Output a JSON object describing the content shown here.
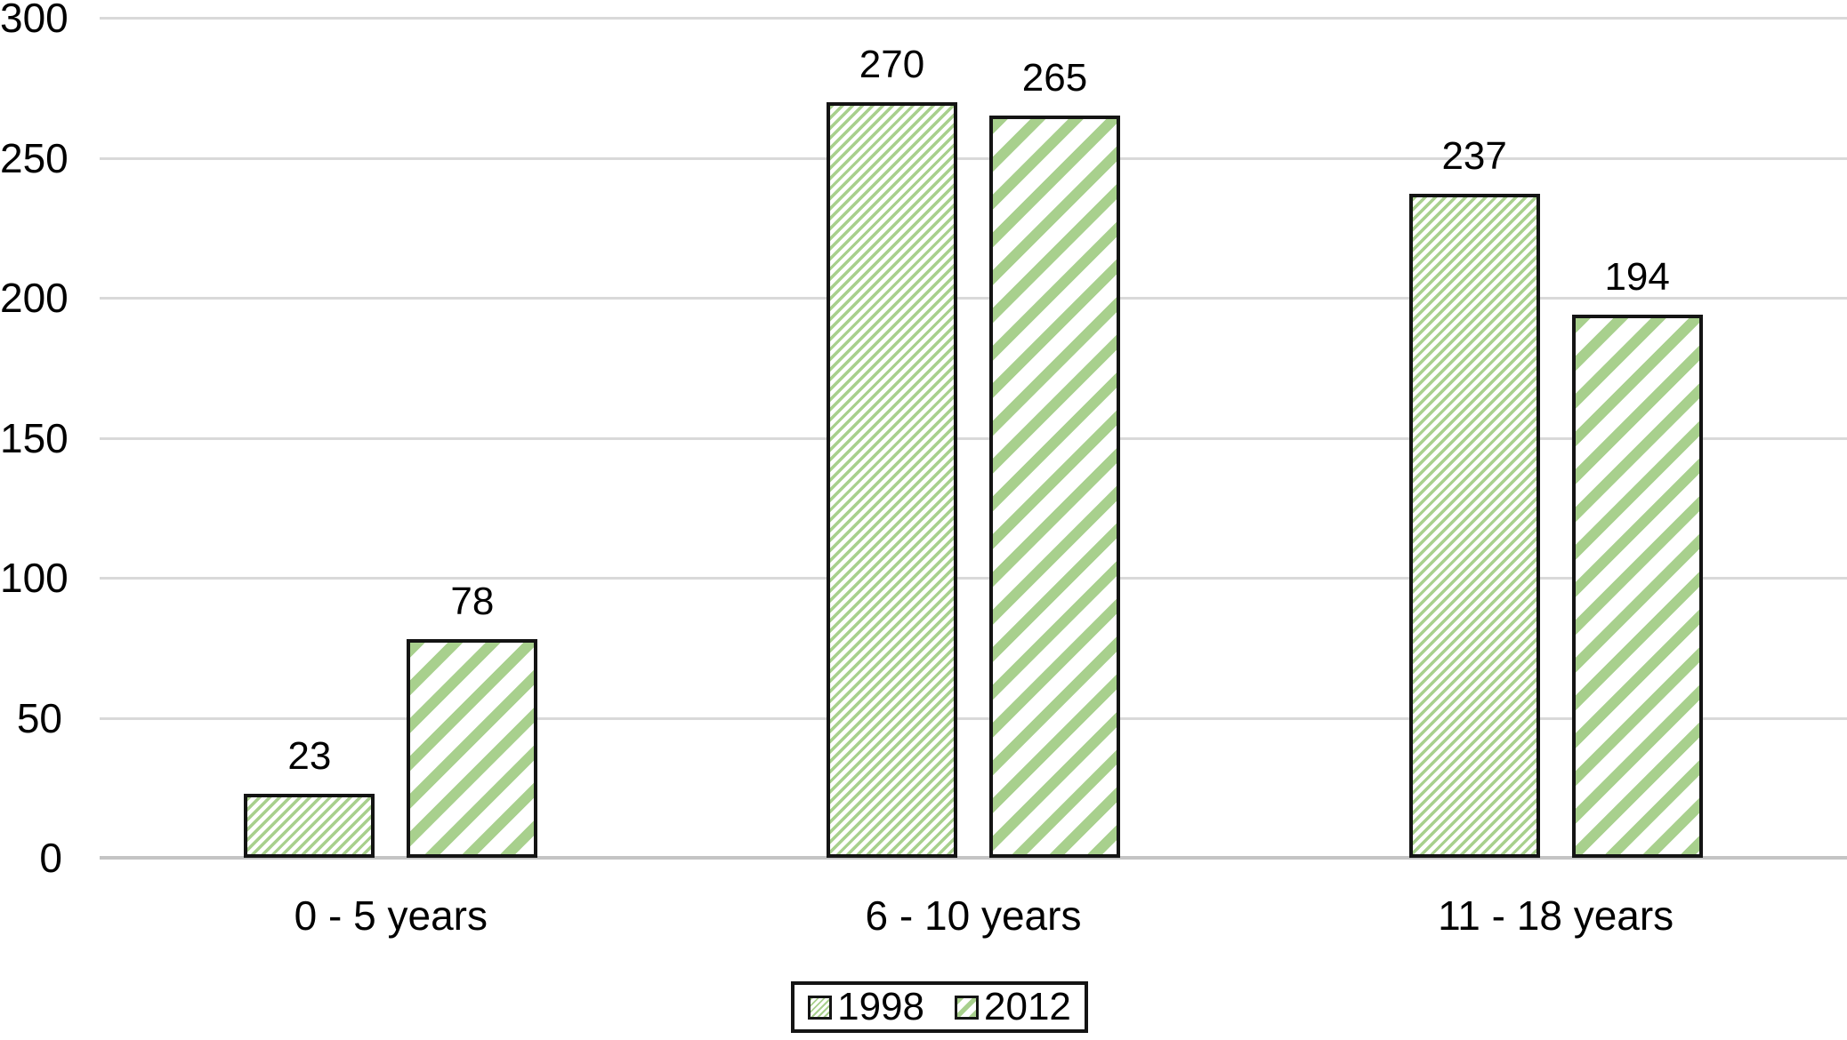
{
  "chart_data": {
    "type": "bar",
    "title": "",
    "xlabel": "",
    "ylabel": "",
    "categories": [
      "0 - 5 years",
      "6 - 10 years",
      "11 - 18 years"
    ],
    "series": [
      {
        "name": "1998",
        "values": [
          23,
          270,
          237
        ],
        "pattern": "fine-hatch"
      },
      {
        "name": "2012",
        "values": [
          78,
          265,
          194
        ],
        "pattern": "wide-hatch"
      }
    ],
    "data_labels": [
      [
        "23",
        "270",
        "237"
      ],
      [
        "78",
        "265",
        "194"
      ]
    ],
    "ylim": [
      0,
      300
    ],
    "yticks": [
      0,
      50,
      100,
      150,
      200,
      250,
      300
    ],
    "grid": "horizontal",
    "legend_position": "bottom-center",
    "legend_entries": [
      "1998",
      "2012"
    ],
    "colors": {
      "hatch_green": "#a8d08d",
      "bar_border": "#141414",
      "gridline": "#d9d9d9",
      "axis_line": "#c4c4c4",
      "text": "#000000",
      "background": "#ffffff"
    }
  }
}
